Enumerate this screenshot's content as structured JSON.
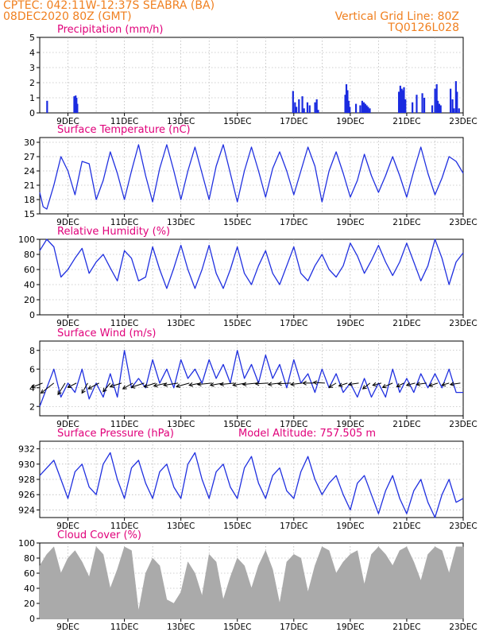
{
  "header": {
    "station": "CPTEC:   042:11W-12:37S   SEABRA (BA)",
    "date": "08DEC2020 80Z (GMT)",
    "grid_line": "Vertical Grid Line: 80Z",
    "code": "TQ0126L028"
  },
  "colors": {
    "header": "#f08020",
    "title": "#e0007a",
    "series": "#2030e0",
    "bars": "#1a2be0",
    "cloud": "#aaaaaa",
    "grid": "#a0a0a0",
    "axis": "#000000"
  },
  "x_axis": {
    "start_day": 8,
    "end_day": 23,
    "ticks": [
      {
        "day": 9,
        "label": "9DEC"
      },
      {
        "day": 11,
        "label": "11DEC"
      },
      {
        "day": 13,
        "label": "13DEC"
      },
      {
        "day": 15,
        "label": "15DEC"
      },
      {
        "day": 17,
        "label": "17DEC"
      },
      {
        "day": 19,
        "label": "19DEC"
      },
      {
        "day": 21,
        "label": "21DEC"
      },
      {
        "day": 23,
        "label": "23DEC"
      }
    ]
  },
  "chart_data": [
    {
      "id": "precip",
      "type": "bar",
      "title": "Precipitation (mm/h)",
      "ylim": [
        0,
        5
      ],
      "yticks": [
        0,
        1,
        2,
        3,
        4,
        5
      ],
      "x_day": [
        8.26,
        9.22,
        9.27,
        9.3,
        9.33,
        16.97,
        17.04,
        17.09,
        17.18,
        17.3,
        17.36,
        17.48,
        17.56,
        17.75,
        17.81,
        17.86,
        18.82,
        18.86,
        18.9,
        18.94,
        18.98,
        19.2,
        19.35,
        19.42,
        19.48,
        19.53,
        19.58,
        19.63,
        19.69,
        20.72,
        20.77,
        20.82,
        20.86,
        20.9,
        20.95,
        21.2,
        21.35,
        21.55,
        21.62,
        21.9,
        22.0,
        22.06,
        22.1,
        22.15,
        22.2,
        22.55,
        22.62,
        22.67,
        22.74,
        22.78,
        22.85
      ],
      "values": [
        0.8,
        1.1,
        1.15,
        1.0,
        0.6,
        1.45,
        0.7,
        0.4,
        0.9,
        1.1,
        0.3,
        0.7,
        0.5,
        0.7,
        0.9,
        0.2,
        1.2,
        1.9,
        1.5,
        0.8,
        0.4,
        0.6,
        0.5,
        0.8,
        0.7,
        0.6,
        0.5,
        0.4,
        0.3,
        1.4,
        1.8,
        1.6,
        1.5,
        1.7,
        0.9,
        0.7,
        1.2,
        1.3,
        1.0,
        0.5,
        1.6,
        1.9,
        0.8,
        0.6,
        0.5,
        1.6,
        0.9,
        0.3,
        2.1,
        1.4,
        0.3
      ]
    },
    {
      "id": "temp",
      "type": "line",
      "title": "Surface Temperature (nC)",
      "ylim": [
        15,
        31
      ],
      "yticks": [
        15,
        18,
        21,
        24,
        27,
        30
      ],
      "x_day": [
        8.0,
        8.12,
        8.25,
        8.5,
        8.75,
        9.0,
        9.25,
        9.5,
        9.75,
        10.0,
        10.25,
        10.5,
        10.75,
        11.0,
        11.25,
        11.5,
        11.75,
        12.0,
        12.25,
        12.5,
        12.75,
        13.0,
        13.25,
        13.5,
        13.75,
        14.0,
        14.25,
        14.5,
        14.75,
        15.0,
        15.25,
        15.5,
        15.75,
        16.0,
        16.25,
        16.5,
        16.75,
        17.0,
        17.25,
        17.5,
        17.75,
        18.0,
        18.25,
        18.5,
        18.75,
        19.0,
        19.25,
        19.5,
        19.75,
        20.0,
        20.25,
        20.5,
        20.75,
        21.0,
        21.25,
        21.5,
        21.75,
        22.0,
        22.25,
        22.5,
        22.75,
        23.0
      ],
      "values": [
        19.5,
        16.5,
        16.0,
        21.0,
        27.0,
        24.0,
        19.0,
        26.0,
        25.5,
        18.0,
        22.0,
        28.0,
        23.5,
        18.0,
        24.0,
        29.5,
        23.0,
        17.5,
        24.5,
        29.5,
        24.0,
        18.0,
        24.0,
        29.0,
        23.5,
        18.0,
        25.0,
        29.5,
        23.5,
        17.5,
        24.0,
        29.0,
        24.0,
        18.5,
        24.5,
        28.0,
        24.0,
        19.0,
        24.0,
        29.0,
        25.0,
        17.5,
        24.0,
        28.0,
        23.5,
        18.5,
        22.0,
        27.5,
        23.0,
        19.5,
        23.0,
        27.0,
        23.0,
        18.5,
        24.0,
        29.0,
        23.5,
        19.0,
        22.5,
        27.0,
        26.0,
        23.5
      ]
    },
    {
      "id": "rh",
      "type": "line",
      "title": "Relative Humidity (%)",
      "ylim": [
        0,
        100
      ],
      "yticks": [
        0,
        20,
        40,
        60,
        80,
        100
      ],
      "x_day": [
        8.0,
        8.25,
        8.5,
        8.75,
        9.0,
        9.25,
        9.5,
        9.75,
        10.0,
        10.25,
        10.5,
        10.75,
        11.0,
        11.25,
        11.5,
        11.75,
        12.0,
        12.25,
        12.5,
        12.75,
        13.0,
        13.25,
        13.5,
        13.75,
        14.0,
        14.25,
        14.5,
        14.75,
        15.0,
        15.25,
        15.5,
        15.75,
        16.0,
        16.25,
        16.5,
        16.75,
        17.0,
        17.25,
        17.5,
        17.75,
        18.0,
        18.25,
        18.5,
        18.75,
        19.0,
        19.25,
        19.5,
        19.75,
        20.0,
        20.25,
        20.5,
        20.75,
        21.0,
        21.25,
        21.5,
        21.75,
        22.0,
        22.25,
        22.5,
        22.75,
        23.0
      ],
      "values": [
        85,
        100,
        90,
        50,
        60,
        75,
        88,
        55,
        70,
        80,
        62,
        45,
        85,
        75,
        45,
        50,
        90,
        60,
        35,
        62,
        92,
        60,
        35,
        60,
        92,
        55,
        35,
        60,
        90,
        55,
        40,
        65,
        85,
        55,
        40,
        65,
        90,
        55,
        45,
        65,
        80,
        60,
        50,
        65,
        95,
        78,
        55,
        72,
        92,
        70,
        52,
        70,
        95,
        70,
        45,
        65,
        100,
        75,
        40,
        70,
        82
      ]
    },
    {
      "id": "wind",
      "type": "line",
      "title": "Surface Wind (m/s)",
      "ylim": [
        1,
        9
      ],
      "yticks": [
        2,
        4,
        6,
        8
      ],
      "x_day": [
        8.0,
        8.25,
        8.5,
        8.75,
        9.0,
        9.25,
        9.5,
        9.75,
        10.0,
        10.25,
        10.5,
        10.75,
        11.0,
        11.25,
        11.5,
        11.75,
        12.0,
        12.25,
        12.5,
        12.75,
        13.0,
        13.25,
        13.5,
        13.75,
        14.0,
        14.25,
        14.5,
        14.75,
        15.0,
        15.25,
        15.5,
        15.75,
        16.0,
        16.25,
        16.5,
        16.75,
        17.0,
        17.25,
        17.5,
        17.75,
        18.0,
        18.25,
        18.5,
        18.75,
        19.0,
        19.25,
        19.5,
        19.75,
        20.0,
        20.25,
        20.5,
        20.75,
        21.0,
        21.25,
        21.5,
        21.75,
        22.0,
        22.25,
        22.5,
        22.75,
        23.0
      ],
      "values": [
        2.0,
        4.0,
        6.0,
        3.0,
        4.5,
        3.5,
        6.0,
        2.8,
        4.5,
        3.0,
        5.5,
        3.0,
        8.0,
        4.0,
        5.0,
        4.0,
        7.0,
        4.5,
        6.0,
        4.0,
        7.0,
        5.0,
        6.0,
        4.5,
        7.0,
        5.0,
        6.5,
        4.5,
        8.0,
        5.0,
        6.5,
        4.5,
        7.5,
        5.0,
        6.5,
        4.0,
        7.0,
        4.5,
        5.5,
        3.5,
        6.0,
        4.0,
        5.5,
        3.5,
        4.5,
        3.0,
        5.0,
        3.0,
        4.5,
        3.0,
        6.0,
        3.5,
        5.0,
        3.5,
        5.5,
        4.0,
        5.5,
        4.0,
        6.0,
        3.5,
        3.5
      ],
      "arrows_day": [
        8.1,
        8.5,
        8.9,
        9.3,
        9.7,
        10.1,
        10.5,
        10.9,
        11.3,
        11.7,
        12.1,
        12.5,
        12.9,
        13.3,
        13.7,
        14.1,
        14.5,
        14.9,
        15.3,
        15.7,
        16.1,
        16.5,
        16.9,
        17.3,
        17.7,
        18.1,
        18.5,
        18.9,
        19.3,
        19.7,
        20.1,
        20.5,
        20.9,
        21.3,
        21.7,
        22.1,
        22.5,
        22.9
      ],
      "arrows_u": [
        -1.5,
        -1.8,
        -1.0,
        -1.2,
        -0.8,
        -1.5,
        -1.0,
        -1.6,
        -1.4,
        -1.8,
        -1.6,
        -1.8,
        -2.0,
        -1.8,
        -1.6,
        -2.0,
        -1.8,
        -2.0,
        -1.8,
        -2.0,
        -1.8,
        -1.6,
        -1.8,
        -1.6,
        -1.5,
        -1.6,
        -1.0,
        -1.2,
        -1.4,
        -1.0,
        -1.2,
        -1.4,
        -1.0,
        -1.2,
        -1.4,
        -1.2,
        -1.0,
        -1.4
      ],
      "arrows_v": [
        -0.6,
        -1.4,
        -1.6,
        -0.6,
        -1.4,
        -0.8,
        -1.2,
        -0.5,
        -0.8,
        -0.6,
        -0.5,
        -0.4,
        -0.3,
        -0.5,
        -0.3,
        -0.2,
        -0.3,
        -0.2,
        -0.3,
        -0.2,
        -0.1,
        -0.2,
        -0.1,
        -0.2,
        0.0,
        0.1,
        -0.6,
        -0.4,
        -0.2,
        -0.8,
        -0.3,
        -0.6,
        -0.5,
        -0.3,
        -0.2,
        -0.4,
        -0.3,
        -0.2
      ]
    },
    {
      "id": "pres",
      "type": "line",
      "title": "Surface Pressure (hPa)",
      "subtitle": "Model Altitude: 757.505 m",
      "ylim": [
        923,
        933
      ],
      "yticks": [
        924,
        926,
        928,
        930,
        932
      ],
      "x_day": [
        8.0,
        8.25,
        8.5,
        8.75,
        9.0,
        9.25,
        9.5,
        9.75,
        10.0,
        10.25,
        10.5,
        10.75,
        11.0,
        11.25,
        11.5,
        11.75,
        12.0,
        12.25,
        12.5,
        12.75,
        13.0,
        13.25,
        13.5,
        13.75,
        14.0,
        14.25,
        14.5,
        14.75,
        15.0,
        15.25,
        15.5,
        15.75,
        16.0,
        16.25,
        16.5,
        16.75,
        17.0,
        17.25,
        17.5,
        17.75,
        18.0,
        18.25,
        18.5,
        18.75,
        19.0,
        19.25,
        19.5,
        19.75,
        20.0,
        20.25,
        20.5,
        20.75,
        21.0,
        21.25,
        21.5,
        21.75,
        22.0,
        22.25,
        22.5,
        22.75,
        23.0
      ],
      "values": [
        928.5,
        929.5,
        930.5,
        928.0,
        925.5,
        929.0,
        930.0,
        927.0,
        926.0,
        930.0,
        931.5,
        928.0,
        925.5,
        929.5,
        930.5,
        927.5,
        925.5,
        929.0,
        930.0,
        927.0,
        925.5,
        930.0,
        931.5,
        928.0,
        925.5,
        929.0,
        930.0,
        927.0,
        925.5,
        929.5,
        931.0,
        927.5,
        925.5,
        928.5,
        929.5,
        926.5,
        925.5,
        929.0,
        931.0,
        928.0,
        926.0,
        927.5,
        928.5,
        926.0,
        924.0,
        927.5,
        928.5,
        926.0,
        923.5,
        926.5,
        928.5,
        925.5,
        923.5,
        926.5,
        928.0,
        925.0,
        923.0,
        926.0,
        928.0,
        925.0,
        925.5
      ]
    },
    {
      "id": "cloud",
      "type": "area",
      "title": "Cloud Cover (%)",
      "ylim": [
        0,
        100
      ],
      "yticks": [
        0,
        20,
        40,
        60,
        80,
        100
      ],
      "x_day": [
        8.0,
        8.25,
        8.5,
        8.75,
        9.0,
        9.25,
        9.5,
        9.75,
        10.0,
        10.25,
        10.5,
        10.75,
        11.0,
        11.25,
        11.5,
        11.75,
        12.0,
        12.25,
        12.5,
        12.75,
        13.0,
        13.25,
        13.5,
        13.75,
        14.0,
        14.25,
        14.5,
        14.75,
        15.0,
        15.25,
        15.5,
        15.75,
        16.0,
        16.25,
        16.5,
        16.75,
        17.0,
        17.25,
        17.5,
        17.75,
        18.0,
        18.25,
        18.5,
        18.75,
        19.0,
        19.25,
        19.5,
        19.75,
        20.0,
        20.25,
        20.5,
        20.75,
        21.0,
        21.25,
        21.5,
        21.75,
        22.0,
        22.25,
        22.5,
        22.75,
        23.0
      ],
      "values": [
        70,
        85,
        95,
        60,
        80,
        90,
        75,
        55,
        95,
        85,
        40,
        65,
        95,
        90,
        10,
        60,
        80,
        70,
        25,
        20,
        35,
        75,
        60,
        30,
        85,
        75,
        25,
        55,
        80,
        70,
        40,
        70,
        90,
        65,
        20,
        75,
        85,
        80,
        35,
        70,
        95,
        90,
        60,
        75,
        85,
        90,
        45,
        85,
        95,
        85,
        70,
        90,
        95,
        75,
        50,
        85,
        95,
        90,
        60,
        95,
        95
      ]
    }
  ]
}
